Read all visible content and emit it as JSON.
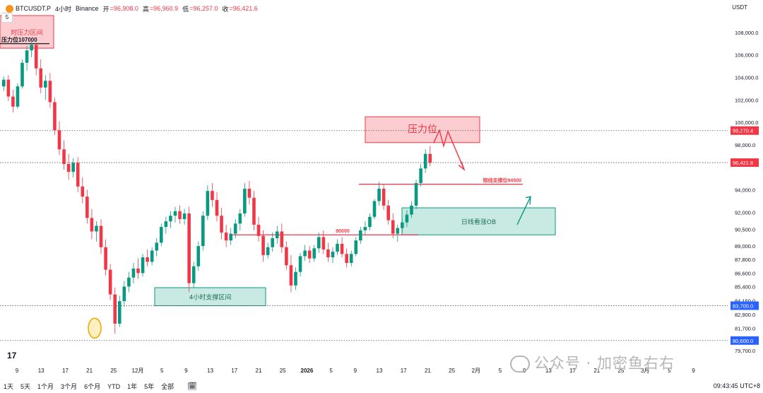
{
  "header": {
    "symbol": "BTCUSDT.P",
    "interval": "4小时",
    "exchange": "Binance",
    "open_label": "开",
    "open_value": "=96,908.0",
    "high_label": "高",
    "high_value": "=96,960.9",
    "low_label": "低",
    "low_value": "=96,257.0",
    "close_label": "收",
    "close_value": "=96,421.6",
    "legend_count": "5"
  },
  "currency": "USDT",
  "clock": "09:43:45 UTC+8",
  "timeframes": [
    "1天",
    "5天",
    "1个月",
    "3个月",
    "6个月",
    "YTD",
    "1年",
    "5年",
    "全部"
  ],
  "watermark": "公众号 · 加密鱼右右",
  "logo": "17",
  "chart_data": {
    "type": "candlestick",
    "ylim": [
      78700,
      109500
    ],
    "y_ticks": [
      108000.0,
      106000.0,
      104000.0,
      102000.0,
      100000.0,
      98000.0,
      94000.0,
      92000.0,
      90500.0,
      89000.0,
      87800.0,
      86600.0,
      85400.0,
      84150.0,
      82900.0,
      81700.0,
      79700.0
    ],
    "y_tick_labels": [
      "108,000.0",
      "106,000.0",
      "104,000.0",
      "102,000.0",
      "100,000.0",
      "98,000.0",
      "94,000.0",
      "92,000.0",
      "90,500.0",
      "89,000.0",
      "87,800.0",
      "86,600.0",
      "85,400.0",
      "84,150.0",
      "82,900.0",
      "81,700.0",
      "79,700.0"
    ],
    "x_ticks": [
      "9",
      "13",
      "17",
      "21",
      "25",
      "12月",
      "5",
      "9",
      "13",
      "17",
      "21",
      "25",
      "2026",
      "5",
      "9",
      "13",
      "17",
      "21",
      "25",
      "2月",
      "5",
      "9",
      "13",
      "17",
      "21",
      "25",
      "3月",
      "5",
      "9"
    ],
    "price_tags": [
      {
        "value": 99270.4,
        "label": "99,270.4",
        "color": "#f23645"
      },
      {
        "value": 96421.6,
        "label": "96,421.6",
        "color": "#f23645"
      },
      {
        "value": 83700.0,
        "label": "83,700.0",
        "color": "#2962ff"
      },
      {
        "value": 80600.0,
        "label": "80,600.0",
        "color": "#2962ff"
      }
    ],
    "levels_dotted": [
      99270.4,
      96421.6,
      83700.0,
      80600.0
    ],
    "zones": [
      {
        "label": "时压力区间",
        "kind": "resistance",
        "y_top": 109500,
        "y_bottom": 106600
      },
      {
        "label": "压力位",
        "kind": "resistance",
        "y_top": 100500,
        "y_bottom": 98200
      },
      {
        "label": "4小时支撑区间",
        "kind": "support",
        "y_top": 85300,
        "y_bottom": 83700
      },
      {
        "label": "日线看涨OB",
        "kind": "support",
        "y_top": 92400,
        "y_bottom": 90000
      }
    ],
    "lines": [
      {
        "label": "压力位107000",
        "value": 107000
      },
      {
        "label": "短线支撑位94500",
        "value": 94500
      },
      {
        "label": "90000",
        "value": 90000
      }
    ],
    "candles": [
      [
        103200,
        104100,
        102800,
        103800
      ],
      [
        103800,
        104200,
        101900,
        102300
      ],
      [
        102300,
        102900,
        100900,
        101400
      ],
      [
        101400,
        103500,
        101200,
        103200
      ],
      [
        103200,
        105600,
        103000,
        105300
      ],
      [
        105300,
        106800,
        104600,
        106400
      ],
      [
        106400,
        107200,
        105800,
        106900
      ],
      [
        106900,
        107100,
        104200,
        104800
      ],
      [
        104800,
        105600,
        102600,
        103100
      ],
      [
        103100,
        104200,
        102000,
        103700
      ],
      [
        103700,
        104400,
        101300,
        101800
      ],
      [
        101800,
        102200,
        98900,
        99300
      ],
      [
        99300,
        100100,
        97100,
        97600
      ],
      [
        97600,
        98400,
        95800,
        96300
      ],
      [
        96300,
        97200,
        94900,
        95600
      ],
      [
        95600,
        96800,
        95100,
        96400
      ],
      [
        96400,
        96900,
        93800,
        94300
      ],
      [
        94300,
        95100,
        92800,
        93400
      ],
      [
        93400,
        94000,
        91000,
        91500
      ],
      [
        91500,
        92300,
        89600,
        90300
      ],
      [
        90300,
        91200,
        89400,
        90800
      ],
      [
        90800,
        91400,
        88300,
        88900
      ],
      [
        88900,
        89600,
        86400,
        86900
      ],
      [
        86900,
        87400,
        84200,
        84700
      ],
      [
        84700,
        85300,
        81200,
        82100
      ],
      [
        82100,
        84600,
        81800,
        84100
      ],
      [
        84100,
        85900,
        83600,
        85400
      ],
      [
        85400,
        86700,
        84900,
        86200
      ],
      [
        86200,
        87500,
        85700,
        87000
      ],
      [
        87000,
        87900,
        86100,
        86600
      ],
      [
        86600,
        88300,
        86300,
        88000
      ],
      [
        88000,
        88700,
        87200,
        87600
      ],
      [
        87600,
        88900,
        87300,
        88600
      ],
      [
        88600,
        89700,
        88100,
        89300
      ],
      [
        89300,
        91000,
        89000,
        90700
      ],
      [
        90700,
        91600,
        90100,
        91200
      ],
      [
        91200,
        92100,
        90600,
        91700
      ],
      [
        91700,
        92500,
        91100,
        92100
      ],
      [
        92100,
        92600,
        91000,
        91400
      ],
      [
        91400,
        92300,
        90900,
        91900
      ],
      [
        91900,
        92500,
        84900,
        85700
      ],
      [
        85700,
        87600,
        85300,
        87200
      ],
      [
        87200,
        89400,
        86800,
        89000
      ],
      [
        89000,
        92100,
        88600,
        91700
      ],
      [
        91700,
        94400,
        91300,
        93900
      ],
      [
        93900,
        94600,
        92500,
        93100
      ],
      [
        93100,
        93800,
        91200,
        91700
      ],
      [
        91700,
        92400,
        89600,
        90200
      ],
      [
        90200,
        90900,
        88900,
        89500
      ],
      [
        89500,
        90600,
        89100,
        90100
      ],
      [
        90100,
        91400,
        89700,
        91000
      ],
      [
        91000,
        92300,
        90400,
        91900
      ],
      [
        91900,
        94600,
        91600,
        94100
      ],
      [
        94100,
        94800,
        92700,
        93300
      ],
      [
        93300,
        93900,
        90400,
        90900
      ],
      [
        90900,
        91600,
        89400,
        89900
      ],
      [
        89900,
        90400,
        87600,
        88200
      ],
      [
        88200,
        89300,
        87900,
        88900
      ],
      [
        88900,
        90200,
        88500,
        89700
      ],
      [
        89700,
        90800,
        89200,
        90300
      ],
      [
        90300,
        91000,
        88400,
        88900
      ],
      [
        88900,
        89400,
        86900,
        87300
      ],
      [
        87300,
        88200,
        84900,
        85500
      ],
      [
        85500,
        87100,
        85100,
        86700
      ],
      [
        86700,
        88400,
        86300,
        88100
      ],
      [
        88100,
        89100,
        87700,
        88600
      ],
      [
        88600,
        89000,
        87500,
        87900
      ],
      [
        87900,
        89100,
        87600,
        88800
      ],
      [
        88800,
        90200,
        88400,
        89800
      ],
      [
        89800,
        90400,
        88300,
        88700
      ],
      [
        88700,
        89300,
        87600,
        88000
      ],
      [
        88000,
        88900,
        87500,
        88500
      ],
      [
        88500,
        89600,
        88200,
        89200
      ],
      [
        89200,
        89800,
        88000,
        88300
      ],
      [
        88300,
        88800,
        87100,
        87500
      ],
      [
        87500,
        88600,
        87200,
        88300
      ],
      [
        88300,
        89800,
        88100,
        89500
      ],
      [
        89500,
        90700,
        89200,
        90400
      ],
      [
        90400,
        91200,
        90000,
        90700
      ],
      [
        90700,
        91900,
        90400,
        91600
      ],
      [
        91600,
        93200,
        91400,
        93000
      ],
      [
        93000,
        94700,
        92600,
        94100
      ],
      [
        94100,
        94500,
        92200,
        92600
      ],
      [
        92600,
        93100,
        90900,
        91300
      ],
      [
        91300,
        91900,
        89700,
        90100
      ],
      [
        90100,
        90900,
        89400,
        90600
      ],
      [
        90600,
        91400,
        90200,
        91100
      ],
      [
        91100,
        92200,
        90700,
        91800
      ],
      [
        91800,
        93000,
        91500,
        92600
      ],
      [
        92600,
        94900,
        92300,
        94600
      ],
      [
        94600,
        96300,
        94300,
        95900
      ],
      [
        95900,
        97600,
        95500,
        97200
      ],
      [
        97200,
        97900,
        96100,
        96400
      ]
    ],
    "annotation_arrows": [
      {
        "kind": "down",
        "from": [
          99100,
          0.58
        ],
        "to": [
          95800,
          0.61
        ]
      },
      {
        "kind": "up",
        "from": [
          90900,
          0.678
        ],
        "to": [
          93400,
          0.695
        ]
      }
    ]
  }
}
